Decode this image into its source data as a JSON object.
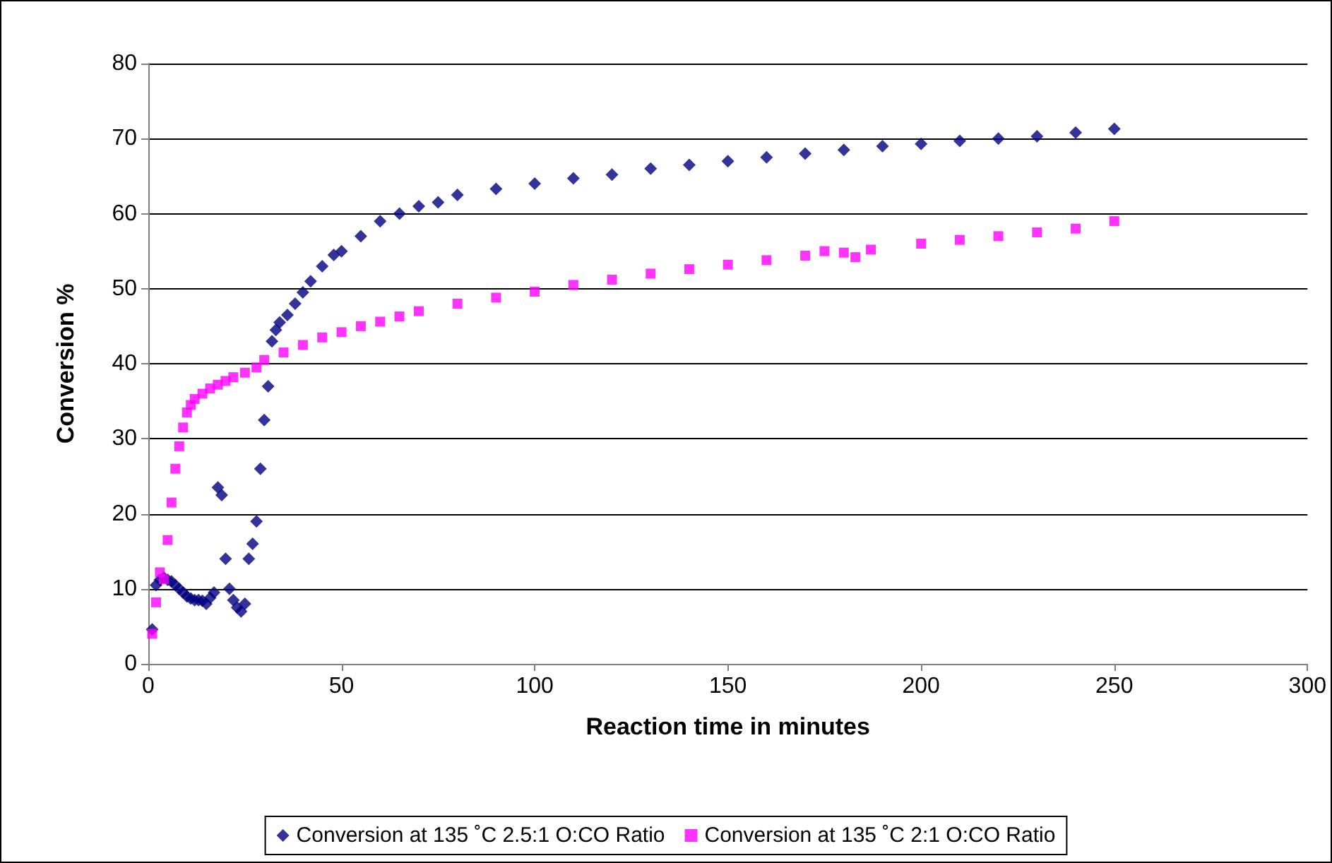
{
  "chart_data": {
    "type": "scatter",
    "xlabel": "Reaction time in minutes",
    "ylabel": "Conversion %",
    "xlim": [
      0,
      300
    ],
    "xticks": [
      0,
      50,
      100,
      150,
      200,
      250,
      300
    ],
    "ylim": [
      0,
      80
    ],
    "yticks": [
      0,
      10,
      20,
      30,
      40,
      50,
      60,
      70,
      80
    ],
    "grid": "y",
    "legend": "bottom",
    "series": [
      {
        "name": "Conversion at 135 ˚C 2.5:1 O:CO Ratio",
        "color": "#000080",
        "marker": "diamond",
        "x": [
          1,
          2,
          3,
          4,
          5,
          6,
          7,
          8,
          9,
          10,
          11,
          12,
          13,
          14,
          15,
          16,
          17,
          18,
          19,
          20,
          21,
          22,
          23,
          24,
          25,
          26,
          27,
          28,
          29,
          30,
          31,
          32,
          33,
          34,
          36,
          38,
          40,
          42,
          45,
          48,
          50,
          55,
          60,
          65,
          70,
          75,
          80,
          90,
          100,
          110,
          120,
          130,
          140,
          150,
          160,
          170,
          180,
          190,
          200,
          210,
          220,
          230,
          240,
          250
        ],
        "values": [
          4.6,
          10.5,
          11.2,
          11.5,
          11.2,
          11,
          10.5,
          10,
          9.5,
          9,
          8.7,
          8.5,
          8.5,
          8.4,
          8,
          8.8,
          9.5,
          23.5,
          22.5,
          14,
          10,
          8.5,
          7.5,
          7,
          8,
          14,
          16,
          19,
          26,
          32.5,
          37,
          43,
          44.5,
          45.5,
          46.5,
          48,
          49.5,
          51,
          53,
          54.5,
          55,
          57,
          59,
          60,
          61,
          61.5,
          62.5,
          63.3,
          64,
          64.7,
          65.2,
          66,
          66.5,
          67,
          67.5,
          68,
          68.5,
          69,
          69.3,
          69.7,
          70,
          70.3,
          70.8,
          71.3
        ]
      },
      {
        "name": "Conversion at 135 ˚C 2:1 O:CO Ratio",
        "color": "#ff00ff",
        "marker": "square",
        "x": [
          1,
          2,
          3,
          4,
          5,
          6,
          7,
          8,
          9,
          10,
          11,
          12,
          14,
          16,
          18,
          20,
          22,
          25,
          28,
          30,
          35,
          40,
          45,
          50,
          55,
          60,
          65,
          70,
          80,
          90,
          100,
          110,
          120,
          130,
          140,
          150,
          160,
          170,
          175,
          180,
          183,
          187,
          200,
          210,
          220,
          230,
          240,
          250
        ],
        "values": [
          4,
          8.2,
          12.2,
          11.3,
          16.5,
          21.5,
          26,
          29,
          31.5,
          33.5,
          34.5,
          35.3,
          36,
          36.7,
          37.2,
          37.7,
          38.2,
          38.8,
          39.5,
          40.5,
          41.5,
          42.5,
          43.5,
          44.2,
          45,
          45.6,
          46.3,
          47,
          48,
          48.8,
          49.6,
          50.5,
          51.2,
          52,
          52.6,
          53.2,
          53.8,
          54.4,
          55,
          54.8,
          54.2,
          55.2,
          56,
          56.5,
          57,
          57.5,
          58,
          59
        ]
      }
    ]
  }
}
